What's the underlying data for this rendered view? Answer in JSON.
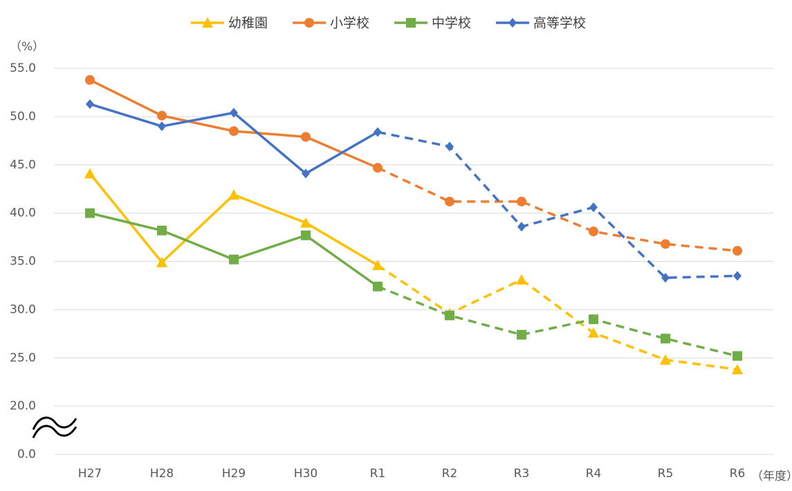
{
  "chart_data": {
    "type": "line",
    "y_label": "（%）",
    "x_label": "（年度）",
    "categories": [
      "H27",
      "H28",
      "H29",
      "H30",
      "R1",
      "R2",
      "R3",
      "R4",
      "R5",
      "R6"
    ],
    "series": [
      {
        "name": "幼稚園",
        "color": "#ffc000",
        "marker": "triangle",
        "values": [
          44.1,
          34.9,
          41.9,
          39.0,
          34.6,
          29.6,
          33.1,
          27.6,
          24.8,
          23.8
        ]
      },
      {
        "name": "小学校",
        "color": "#ed7d31",
        "marker": "circle",
        "values": [
          53.8,
          50.1,
          48.5,
          47.9,
          44.7,
          41.2,
          41.2,
          38.1,
          36.8,
          36.1
        ]
      },
      {
        "name": "中学校",
        "color": "#70ad47",
        "marker": "square",
        "values": [
          40.0,
          38.2,
          35.2,
          37.7,
          32.4,
          29.4,
          27.4,
          29.0,
          27.0,
          25.2
        ]
      },
      {
        "name": "高等学校",
        "color": "#4472c4",
        "marker": "diamond",
        "values": [
          51.3,
          49.0,
          50.4,
          44.1,
          48.4,
          46.9,
          38.6,
          40.6,
          33.3,
          33.5
        ]
      }
    ],
    "dashed_from_index": 4,
    "ylim": [
      0,
      55
    ],
    "axis_break": [
      0,
      20
    ],
    "yticks": [
      {
        "value": 0,
        "label": "0.0"
      },
      {
        "value": 20,
        "label": "20.0"
      },
      {
        "value": 25,
        "label": "25.0"
      },
      {
        "value": 30,
        "label": "30.0"
      },
      {
        "value": 35,
        "label": "35.0"
      },
      {
        "value": 40,
        "label": "40.0"
      },
      {
        "value": 45,
        "label": "45.0"
      },
      {
        "value": 50,
        "label": "50.0"
      },
      {
        "value": 55,
        "label": "55.0"
      }
    ],
    "grid": true,
    "legend": "top"
  }
}
